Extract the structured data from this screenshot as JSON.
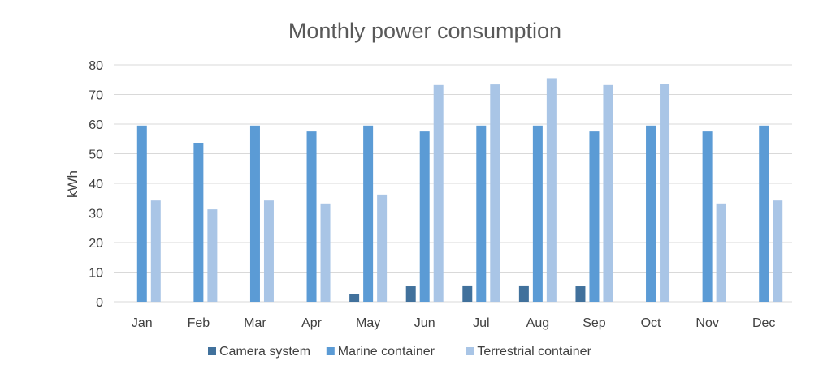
{
  "chart_data": {
    "type": "bar",
    "title": "Monthly power consumption",
    "xlabel": "",
    "ylabel": "kWh",
    "ylim": [
      0,
      80
    ],
    "yticks": [
      "0",
      "10",
      "20",
      "30",
      "40",
      "50",
      "60",
      "70",
      "80"
    ],
    "grid": true,
    "legend_position": "bottom",
    "categories": [
      "Jan",
      "Feb",
      "Mar",
      "Apr",
      "May",
      "Jun",
      "Jul",
      "Aug",
      "Sep",
      "Oct",
      "Nov",
      "Dec"
    ],
    "series": [
      {
        "name": "Camera system",
        "color": "#41719c",
        "values": [
          0,
          0,
          0,
          0,
          2.5,
          5.2,
          5.5,
          5.5,
          5.2,
          0,
          0,
          0
        ]
      },
      {
        "name": "Marine container",
        "color": "#5b9bd5",
        "values": [
          59.5,
          53.7,
          59.5,
          57.5,
          59.5,
          57.5,
          59.5,
          59.5,
          57.5,
          59.5,
          57.5,
          59.5
        ]
      },
      {
        "name": "Terrestrial container",
        "color": "#a9c5e6",
        "values": [
          34.2,
          31.2,
          34.2,
          33.2,
          36.2,
          73.2,
          73.4,
          75.5,
          73.2,
          73.6,
          33.2,
          34.2
        ]
      }
    ]
  }
}
